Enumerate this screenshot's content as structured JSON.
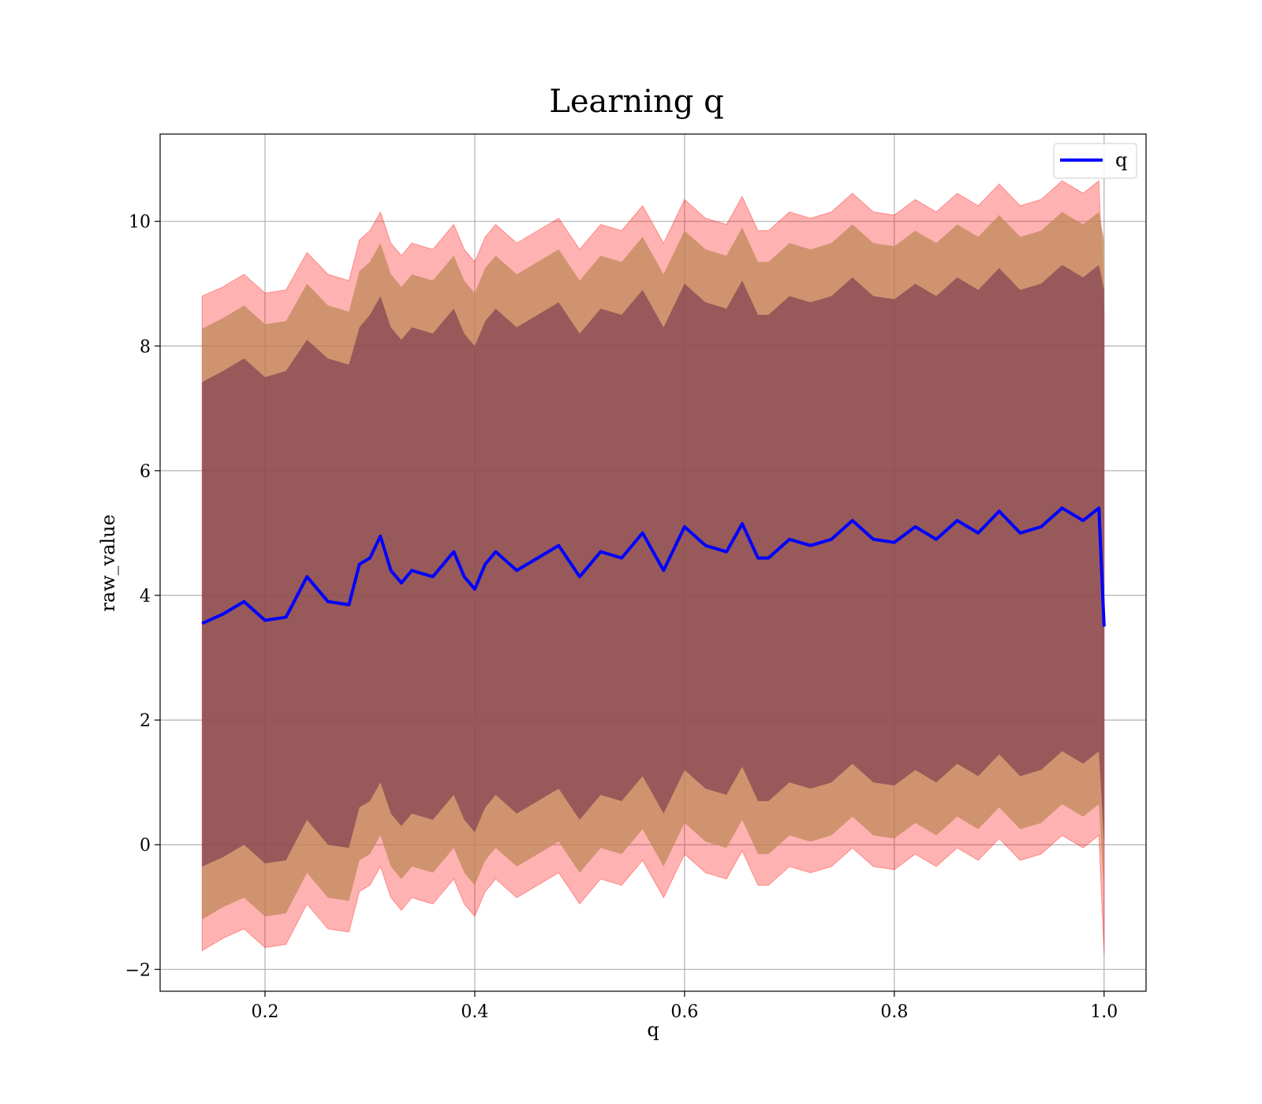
{
  "chart_data": {
    "type": "area",
    "title": "Learning q",
    "xlabel": "q",
    "ylabel": "raw_value",
    "xlim": [
      0.1,
      1.04
    ],
    "ylim": [
      -2.35,
      11.4
    ],
    "x_ticks": [
      0.2,
      0.4,
      0.6,
      0.8,
      1.0
    ],
    "x_tick_labels": [
      "0.2",
      "0.4",
      "0.6",
      "0.8",
      "1.0"
    ],
    "y_ticks": [
      -2,
      0,
      2,
      4,
      6,
      8,
      10
    ],
    "y_tick_labels": [
      "−2",
      "0",
      "2",
      "4",
      "6",
      "8",
      "10"
    ],
    "grid": true,
    "legend": {
      "position": "top-right",
      "entries": [
        {
          "label": "q",
          "color": "#0000ff"
        }
      ]
    },
    "colors": {
      "line": "#0000ff",
      "band_outer": "#ff0000",
      "band_middle": "#c08858",
      "band_inner": "#6a2a48"
    },
    "x": [
      0.14,
      0.16,
      0.18,
      0.2,
      0.22,
      0.24,
      0.26,
      0.28,
      0.29,
      0.3,
      0.31,
      0.32,
      0.33,
      0.34,
      0.36,
      0.38,
      0.39,
      0.4,
      0.41,
      0.42,
      0.44,
      0.46,
      0.48,
      0.5,
      0.52,
      0.54,
      0.56,
      0.58,
      0.6,
      0.62,
      0.64,
      0.655,
      0.67,
      0.68,
      0.7,
      0.72,
      0.74,
      0.76,
      0.78,
      0.8,
      0.82,
      0.84,
      0.86,
      0.88,
      0.9,
      0.92,
      0.94,
      0.96,
      0.98,
      0.995,
      1.0
    ],
    "series": [
      {
        "name": "q",
        "values": [
          3.55,
          3.7,
          3.9,
          3.6,
          3.65,
          4.3,
          3.9,
          3.85,
          4.5,
          4.6,
          4.95,
          4.4,
          4.2,
          4.4,
          4.3,
          4.7,
          4.3,
          4.1,
          4.5,
          4.7,
          4.4,
          4.6,
          4.8,
          4.3,
          4.7,
          4.6,
          5.0,
          4.4,
          5.1,
          4.8,
          4.7,
          5.15,
          4.6,
          4.6,
          4.9,
          4.8,
          4.9,
          5.2,
          4.9,
          4.85,
          5.1,
          4.9,
          5.2,
          5.0,
          5.35,
          5.0,
          5.1,
          5.4,
          5.2,
          5.4,
          3.5
        ],
        "band_inner": {
          "upper": [
            7.42,
            7.6,
            7.8,
            7.5,
            7.6,
            8.1,
            7.8,
            7.7,
            8.3,
            8.5,
            8.8,
            8.3,
            8.1,
            8.3,
            8.2,
            8.6,
            8.2,
            8.0,
            8.4,
            8.6,
            8.3,
            8.5,
            8.7,
            8.2,
            8.6,
            8.5,
            8.9,
            8.3,
            9.0,
            8.7,
            8.6,
            9.05,
            8.5,
            8.5,
            8.8,
            8.7,
            8.8,
            9.1,
            8.8,
            8.75,
            9.0,
            8.8,
            9.1,
            8.9,
            9.25,
            8.9,
            9.0,
            9.3,
            9.1,
            9.3,
            8.9
          ],
          "lower": [
            -0.35,
            -0.2,
            0.0,
            -0.3,
            -0.25,
            0.4,
            0.0,
            -0.05,
            0.6,
            0.7,
            1.0,
            0.5,
            0.3,
            0.5,
            0.4,
            0.8,
            0.4,
            0.2,
            0.6,
            0.8,
            0.5,
            0.7,
            0.9,
            0.4,
            0.8,
            0.7,
            1.1,
            0.5,
            1.2,
            0.9,
            0.8,
            1.25,
            0.7,
            0.7,
            1.0,
            0.9,
            1.0,
            1.3,
            1.0,
            0.95,
            1.2,
            1.0,
            1.3,
            1.1,
            1.45,
            1.1,
            1.2,
            1.5,
            1.3,
            1.5,
            0.0
          ]
        },
        "band_middle": {
          "upper": [
            8.28,
            8.45,
            8.65,
            8.35,
            8.4,
            9.0,
            8.65,
            8.55,
            9.2,
            9.35,
            9.65,
            9.15,
            8.95,
            9.15,
            9.05,
            9.45,
            9.05,
            8.85,
            9.25,
            9.45,
            9.15,
            9.35,
            9.55,
            9.05,
            9.45,
            9.35,
            9.75,
            9.15,
            9.85,
            9.55,
            9.45,
            9.9,
            9.35,
            9.35,
            9.65,
            9.55,
            9.65,
            9.95,
            9.65,
            9.6,
            9.85,
            9.65,
            9.95,
            9.75,
            10.1,
            9.75,
            9.85,
            10.15,
            9.95,
            10.15,
            9.7
          ],
          "lower": [
            -1.2,
            -1.0,
            -0.85,
            -1.15,
            -1.1,
            -0.45,
            -0.85,
            -0.9,
            -0.25,
            -0.15,
            0.15,
            -0.35,
            -0.55,
            -0.35,
            -0.45,
            -0.05,
            -0.45,
            -0.65,
            -0.25,
            -0.05,
            -0.35,
            -0.15,
            0.05,
            -0.45,
            -0.05,
            -0.15,
            0.25,
            -0.35,
            0.35,
            0.05,
            -0.05,
            0.4,
            -0.15,
            -0.15,
            0.15,
            0.05,
            0.15,
            0.45,
            0.15,
            0.1,
            0.35,
            0.15,
            0.45,
            0.25,
            0.6,
            0.25,
            0.35,
            0.65,
            0.45,
            0.65,
            -0.8
          ]
        },
        "band_outer": {
          "upper": [
            8.8,
            8.95,
            9.15,
            8.85,
            8.9,
            9.5,
            9.15,
            9.05,
            9.7,
            9.85,
            10.15,
            9.65,
            9.45,
            9.65,
            9.55,
            9.95,
            9.55,
            9.35,
            9.75,
            9.95,
            9.65,
            9.85,
            10.05,
            9.55,
            9.95,
            9.85,
            10.25,
            9.65,
            10.35,
            10.05,
            9.95,
            10.4,
            9.85,
            9.85,
            10.15,
            10.05,
            10.15,
            10.45,
            10.15,
            10.1,
            10.35,
            10.15,
            10.45,
            10.25,
            10.6,
            10.25,
            10.35,
            10.65,
            10.45,
            10.65,
            8.5
          ],
          "lower": [
            -1.7,
            -1.5,
            -1.35,
            -1.65,
            -1.6,
            -0.95,
            -1.35,
            -1.4,
            -0.75,
            -0.65,
            -0.35,
            -0.85,
            -1.05,
            -0.85,
            -0.95,
            -0.55,
            -0.95,
            -1.15,
            -0.75,
            -0.55,
            -0.85,
            -0.65,
            -0.45,
            -0.95,
            -0.55,
            -0.65,
            -0.25,
            -0.85,
            -0.15,
            -0.45,
            -0.55,
            -0.1,
            -0.65,
            -0.65,
            -0.35,
            -0.45,
            -0.35,
            -0.05,
            -0.35,
            -0.4,
            -0.15,
            -0.35,
            -0.05,
            -0.25,
            0.1,
            -0.25,
            -0.15,
            0.15,
            -0.05,
            0.15,
            -1.75
          ]
        }
      }
    ]
  }
}
